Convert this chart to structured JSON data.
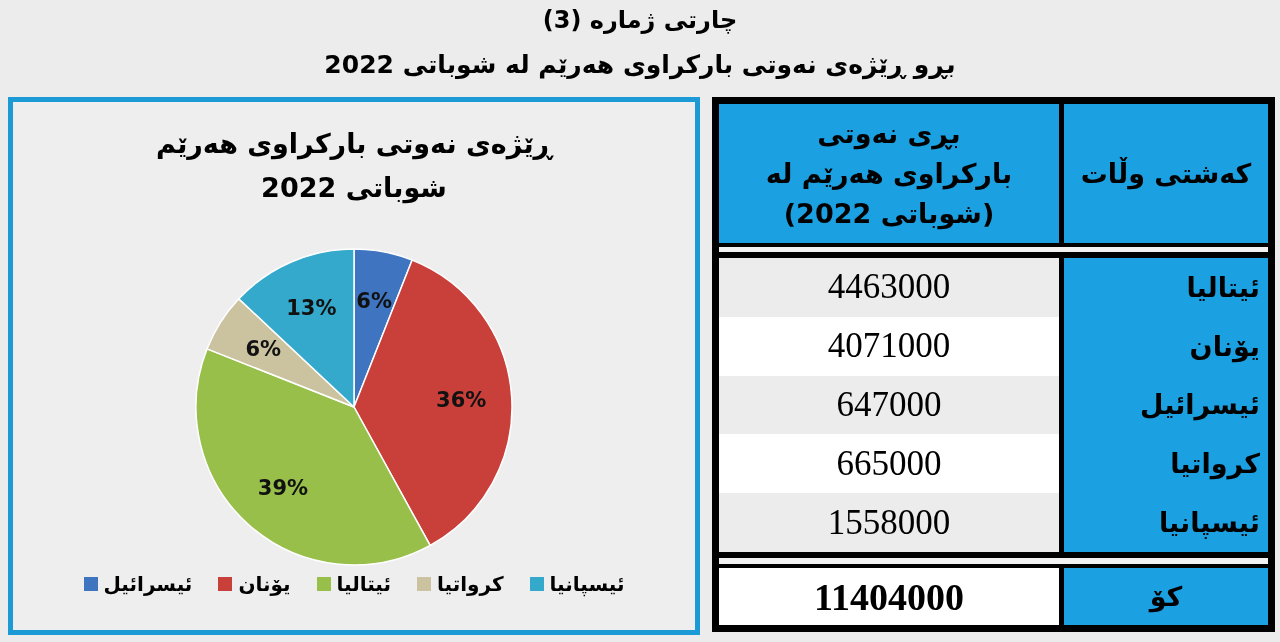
{
  "chart_data": [
    {
      "type": "other",
      "title": "چارتی ژمارە (3)",
      "subtitle": "بڕو ڕێژەی نەوتی بارکراوی هەرێم لە شوباتی 2022"
    },
    {
      "type": "pie",
      "title": "ڕێژەی نەوتی بارکراوی هەرێم شوباتی 2022",
      "categories": [
        "ئیسرائیل",
        "یۆنان",
        "ئیتالیا",
        "کرواتیا",
        "ئیسپانیا"
      ],
      "values": [
        6,
        36,
        39,
        6,
        13
      ],
      "value_labels": [
        "6%",
        "36%",
        "39%",
        "6%",
        "13%"
      ],
      "colors": [
        "#3f74c0",
        "#c9403b",
        "#98bf4a",
        "#cbc3a0",
        "#34a9cc"
      ],
      "legend": "bottom"
    },
    {
      "type": "other",
      "categories": [
        "ئیتالیا",
        "یۆنان",
        "ئیسرائیل",
        "کرواتیا",
        "ئیسپانیا"
      ],
      "values": [
        4463000,
        4071000,
        647000,
        665000,
        1558000
      ],
      "data_labels": true,
      "totals": [
        "11404000"
      ],
      "annotations": [
        "کەشتی وڵات",
        "بڕی نەوتی بارکراوی هەرێم لە (شوباتی 2022)",
        "کۆ"
      ]
    }
  ]
}
